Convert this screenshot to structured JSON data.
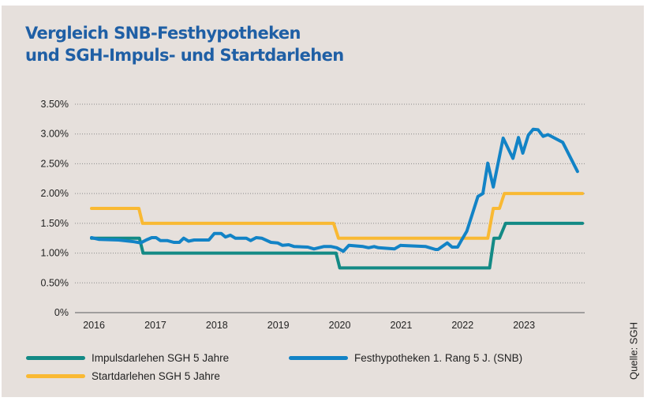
{
  "title_lines": [
    "Vergleich SNB-Festhypotheken",
    "und SGH-Impuls- und Startdarlehen"
  ],
  "source": "Quelle: SGH",
  "chart_data": {
    "type": "line",
    "title": "Vergleich SNB-Festhypotheken und SGH-Impuls- und Startdarlehen",
    "xlabel": "",
    "ylabel": "",
    "xlim": [
      2015.96,
      2024.0
    ],
    "ylim": [
      0,
      3.5
    ],
    "x_ticks": [
      2016,
      2017,
      2018,
      2019,
      2020,
      2021,
      2022,
      2023
    ],
    "x_tick_labels": [
      "2016",
      "2017",
      "2018",
      "2019",
      "2020",
      "2021",
      "2022",
      "2023"
    ],
    "y_ticks": [
      0,
      0.5,
      1.0,
      1.5,
      2.0,
      2.5,
      3.0,
      3.5
    ],
    "y_tick_labels": [
      "0%",
      "0.50%",
      "1.00%",
      "1.50%",
      "2.00%",
      "2.50%",
      "3.00%",
      "3.50%"
    ],
    "grid": "horizontal dotted",
    "legend_placement": "bottom",
    "series": [
      {
        "name": "Impulsdarlehen SGH 5 Jahre",
        "color": "#138a85",
        "points": [
          [
            2015.96,
            1.25
          ],
          [
            2016.74,
            1.25
          ],
          [
            2016.8,
            1.0
          ],
          [
            2019.94,
            1.0
          ],
          [
            2020.0,
            0.75
          ],
          [
            2022.44,
            0.75
          ],
          [
            2022.51,
            1.25
          ],
          [
            2022.6,
            1.25
          ],
          [
            2022.7,
            1.5
          ],
          [
            2023.95,
            1.5
          ]
        ]
      },
      {
        "name": "Festhypotheken 1. Rang 5 J. (SNB)",
        "color": "#1283c6",
        "points": [
          [
            2015.96,
            1.26
          ],
          [
            2016.08,
            1.23
          ],
          [
            2016.4,
            1.22
          ],
          [
            2016.65,
            1.19
          ],
          [
            2016.76,
            1.17
          ],
          [
            2016.85,
            1.22
          ],
          [
            2016.94,
            1.26
          ],
          [
            2017.01,
            1.26
          ],
          [
            2017.08,
            1.21
          ],
          [
            2017.19,
            1.21
          ],
          [
            2017.3,
            1.18
          ],
          [
            2017.39,
            1.18
          ],
          [
            2017.46,
            1.25
          ],
          [
            2017.54,
            1.2
          ],
          [
            2017.63,
            1.22
          ],
          [
            2017.87,
            1.22
          ],
          [
            2017.96,
            1.33
          ],
          [
            2018.07,
            1.33
          ],
          [
            2018.14,
            1.27
          ],
          [
            2018.22,
            1.3
          ],
          [
            2018.3,
            1.25
          ],
          [
            2018.48,
            1.25
          ],
          [
            2018.55,
            1.21
          ],
          [
            2018.64,
            1.26
          ],
          [
            2018.73,
            1.25
          ],
          [
            2018.88,
            1.18
          ],
          [
            2018.99,
            1.17
          ],
          [
            2019.07,
            1.13
          ],
          [
            2019.17,
            1.14
          ],
          [
            2019.26,
            1.11
          ],
          [
            2019.48,
            1.1
          ],
          [
            2019.58,
            1.07
          ],
          [
            2019.74,
            1.11
          ],
          [
            2019.86,
            1.11
          ],
          [
            2019.95,
            1.09
          ],
          [
            2020.06,
            1.03
          ],
          [
            2020.15,
            1.13
          ],
          [
            2020.38,
            1.11
          ],
          [
            2020.47,
            1.09
          ],
          [
            2020.56,
            1.11
          ],
          [
            2020.63,
            1.09
          ],
          [
            2020.89,
            1.07
          ],
          [
            2020.99,
            1.13
          ],
          [
            2021.4,
            1.11
          ],
          [
            2021.56,
            1.06
          ],
          [
            2021.6,
            1.06
          ],
          [
            2021.75,
            1.17
          ],
          [
            2021.83,
            1.1
          ],
          [
            2021.92,
            1.1
          ],
          [
            2021.98,
            1.21
          ],
          [
            2022.07,
            1.37
          ],
          [
            2022.25,
            1.95
          ],
          [
            2022.33,
            2.0
          ],
          [
            2022.41,
            2.51
          ],
          [
            2022.5,
            2.11
          ],
          [
            2022.66,
            2.93
          ],
          [
            2022.82,
            2.59
          ],
          [
            2022.91,
            2.94
          ],
          [
            2022.98,
            2.68
          ],
          [
            2023.07,
            2.98
          ],
          [
            2023.15,
            3.08
          ],
          [
            2023.23,
            3.07
          ],
          [
            2023.31,
            2.96
          ],
          [
            2023.39,
            2.99
          ],
          [
            2023.63,
            2.86
          ],
          [
            2023.87,
            2.37
          ]
        ]
      },
      {
        "name": "Startdarlehen SGH 5 Jahre",
        "color": "#f9b933",
        "points": [
          [
            2015.96,
            1.75
          ],
          [
            2016.73,
            1.75
          ],
          [
            2016.79,
            1.5
          ],
          [
            2019.9,
            1.5
          ],
          [
            2019.98,
            1.25
          ],
          [
            2022.41,
            1.25
          ],
          [
            2022.5,
            1.75
          ],
          [
            2022.6,
            1.75
          ],
          [
            2022.68,
            2.0
          ],
          [
            2023.95,
            2.0
          ]
        ]
      }
    ]
  }
}
